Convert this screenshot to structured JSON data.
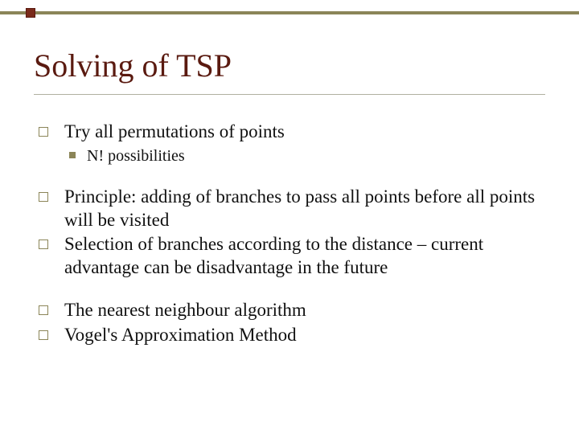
{
  "styling": {
    "background_color": "#ffffff",
    "top_bar_color": "#8b8558",
    "top_accent_square_fill": "#7a2a1a",
    "top_accent_square_border": "#5a1a10",
    "title_color": "#5a1a10",
    "title_fontsize": 40,
    "title_underline_color": "#b0b0a0",
    "body_fontsize": 23,
    "sub_fontsize": 20,
    "square_bullet_border": "#8b8558",
    "sub_bullet_fill": "#8b8558",
    "font_family": "Georgia, Times New Roman, serif"
  },
  "title": "Solving of TSP",
  "groups": [
    {
      "items": [
        {
          "text": "Try all permutations of points",
          "sub": [
            {
              "text": "N! possibilities"
            }
          ]
        }
      ]
    },
    {
      "items": [
        {
          "text": "Principle: adding of branches to pass all points before all points will be visited"
        },
        {
          "text": "Selection of branches according to the distance – current advantage can be disadvantage in the future"
        }
      ]
    },
    {
      "items": [
        {
          "text": "The nearest neighbour algorithm"
        },
        {
          "text": "Vogel's Approximation Method"
        }
      ]
    }
  ]
}
